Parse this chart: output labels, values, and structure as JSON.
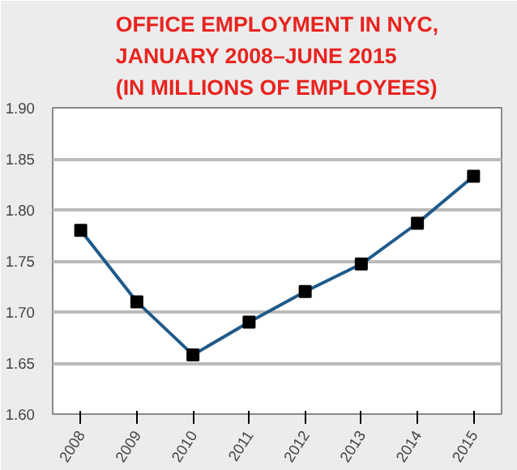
{
  "chart_data": {
    "type": "line",
    "title": "OFFICE EMPLOYMENT IN NYC,\nJANUARY 2008–JUNE 2015\n(IN MILLIONS OF EMPLOYEES)",
    "categories": [
      "2008",
      "2009",
      "2010",
      "2011",
      "2012",
      "2013",
      "2014",
      "2015"
    ],
    "series": [
      {
        "color": "#1f5a8a",
        "values": [
          1.78,
          1.71,
          1.658,
          1.69,
          1.72,
          1.747,
          1.787,
          1.833
        ]
      }
    ],
    "ylim": [
      1.6,
      1.9
    ],
    "yticks": [
      {
        "value": 1.6,
        "label": "1.60"
      },
      {
        "value": 1.65,
        "label": "1.65"
      },
      {
        "value": 1.7,
        "label": "1.70"
      },
      {
        "value": 1.75,
        "label": "1.75"
      },
      {
        "value": 1.8,
        "label": "1.80"
      },
      {
        "value": 1.85,
        "label": "1.85"
      },
      {
        "value": 1.9,
        "label": "1.90"
      }
    ],
    "grid": "y",
    "marker": "square"
  }
}
